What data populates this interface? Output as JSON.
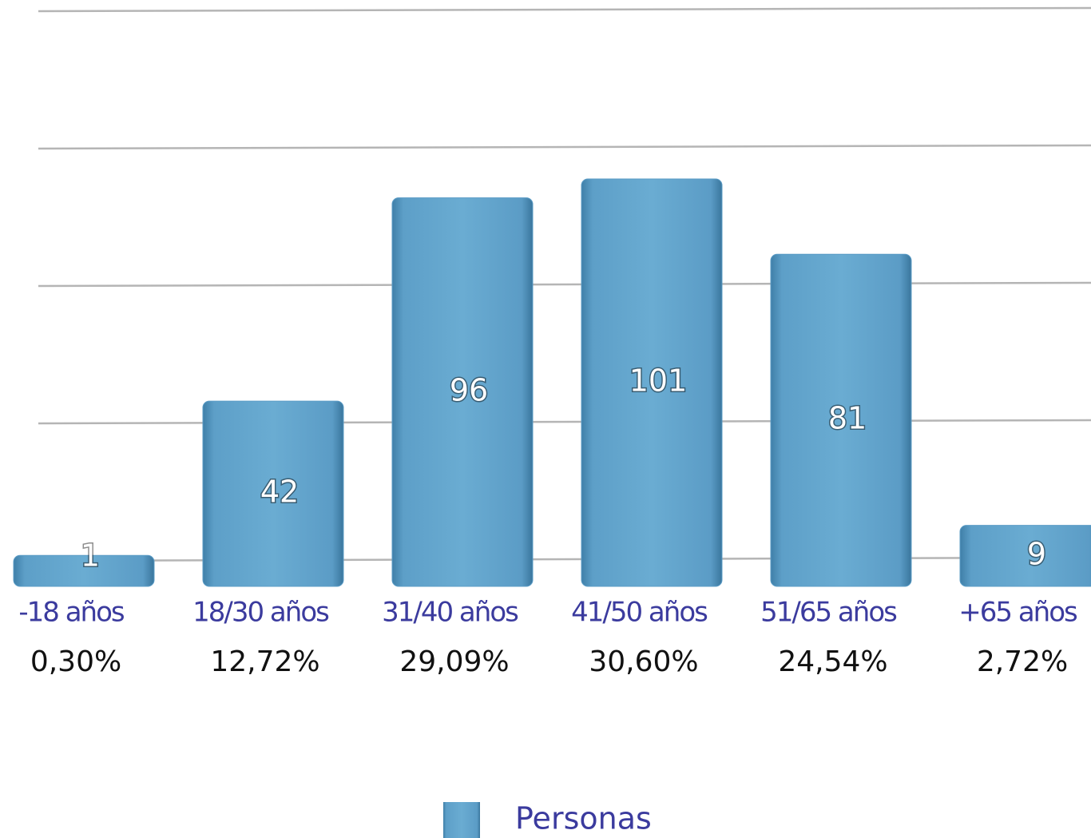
{
  "chart_data": {
    "type": "bar",
    "categories": [
      "-18 años",
      "18/30 años",
      "31/40 años",
      "41/50 años",
      "51/65 años",
      "+65 años"
    ],
    "category_percentages": [
      "0,30%",
      "12,72%",
      "29,09%",
      "30,60%",
      "24,54%",
      "2,72%"
    ],
    "series": [
      {
        "name": "Personas",
        "color": "#5b9cc6",
        "values": [
          1,
          42,
          96,
          101,
          81,
          9
        ]
      }
    ],
    "ylim": [
      0,
      146
    ],
    "yticks": [
      0,
      36.5,
      73,
      109.5,
      146
    ],
    "grid": true,
    "legend": "bottom"
  }
}
